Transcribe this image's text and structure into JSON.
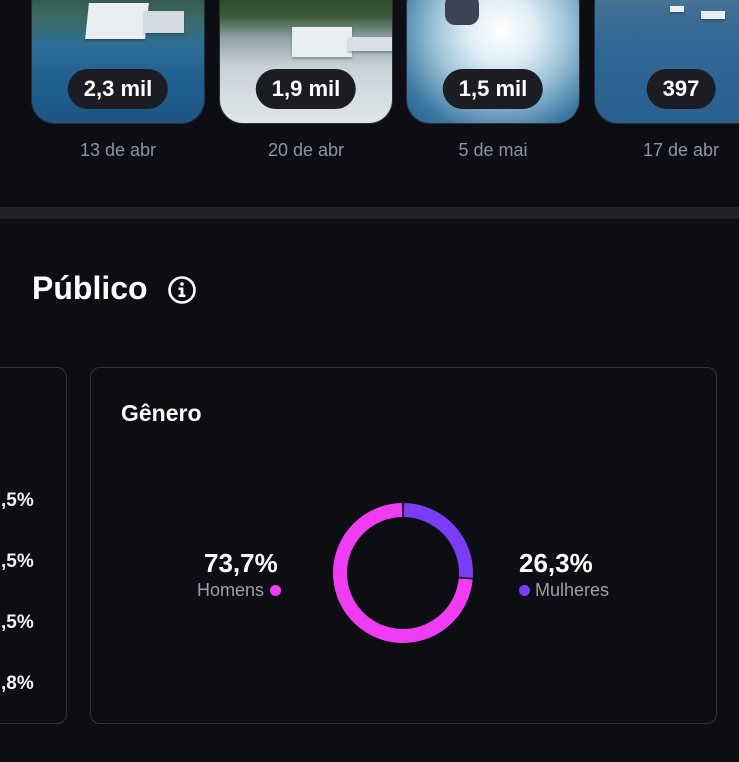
{
  "reels": [
    {
      "views": "2,3 mil",
      "date": "13 de abr"
    },
    {
      "views": "1,9 mil",
      "date": "20 de abr"
    },
    {
      "views": "1,5 mil",
      "date": "5 de mai"
    },
    {
      "views": "397",
      "date": "17 de abr"
    }
  ],
  "audience": {
    "title": "Público",
    "info_icon": "info-circle-icon",
    "age_card": {
      "partial_percentages": [
        ",5%",
        ",5%",
        ",5%",
        ",8%"
      ]
    },
    "gender_card": {
      "title": "Gênero",
      "men": {
        "value": "73,7%",
        "label": "Homens",
        "color": "#f03cf3"
      },
      "women": {
        "value": "26,3%",
        "label": "Mulheres",
        "color": "#7b3cf5"
      }
    }
  },
  "chart_data": {
    "type": "pie",
    "categories": [
      "Homens",
      "Mulheres"
    ],
    "values": [
      73.7,
      26.3
    ],
    "colors": [
      "#f03cf3",
      "#7b3cf5"
    ]
  }
}
